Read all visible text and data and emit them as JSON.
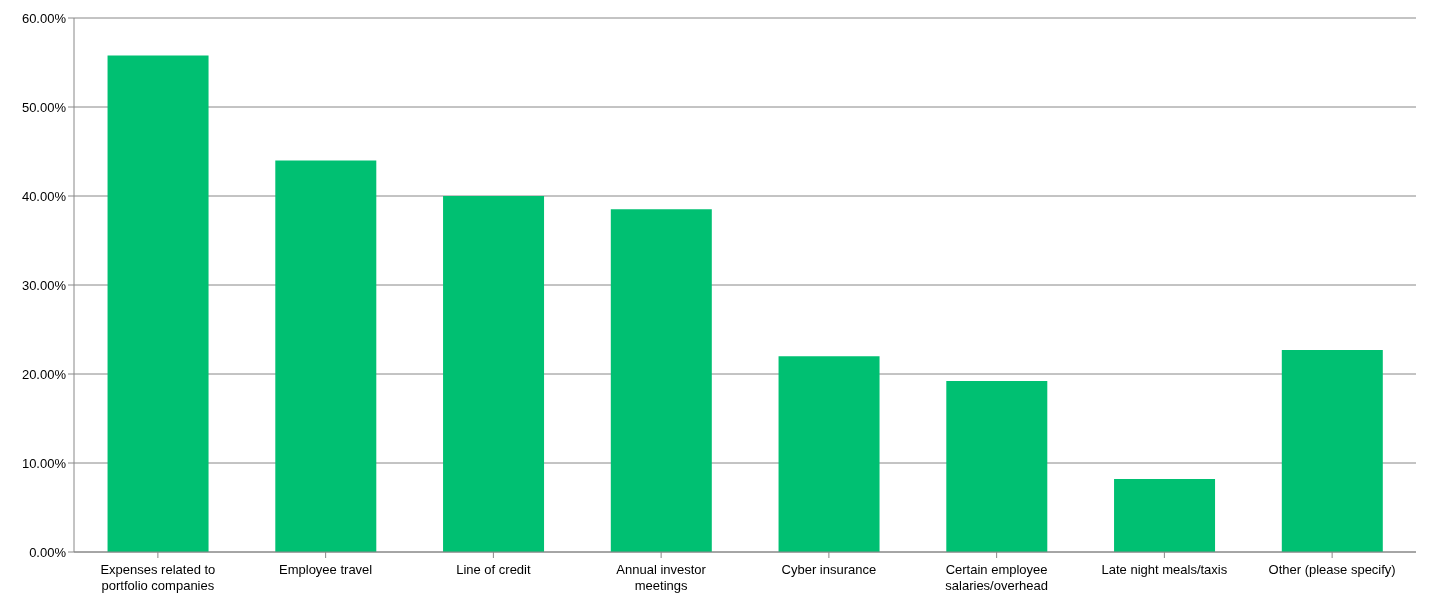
{
  "chart_data": {
    "type": "bar",
    "categories": [
      "Expenses related to portfolio companies",
      "Employee travel",
      "Line of credit",
      "Annual investor meetings",
      "Cyber insurance",
      "Certain employee salaries/overhead",
      "Late night meals/taxis",
      "Other (please specify)"
    ],
    "values": [
      55.8,
      44.0,
      40.0,
      38.5,
      22.0,
      19.2,
      8.2,
      22.7
    ],
    "color": "#00c072",
    "ylim": [
      0,
      60
    ],
    "yticks": [
      {
        "value": 0,
        "label": "0.00%"
      },
      {
        "value": 10,
        "label": "10.00%"
      },
      {
        "value": 20,
        "label": "20.00%"
      },
      {
        "value": 30,
        "label": "30.00%"
      },
      {
        "value": 40,
        "label": "40.00%"
      },
      {
        "value": 50,
        "label": "50.00%"
      },
      {
        "value": 60,
        "label": "60.00%"
      }
    ],
    "grid": "y"
  }
}
